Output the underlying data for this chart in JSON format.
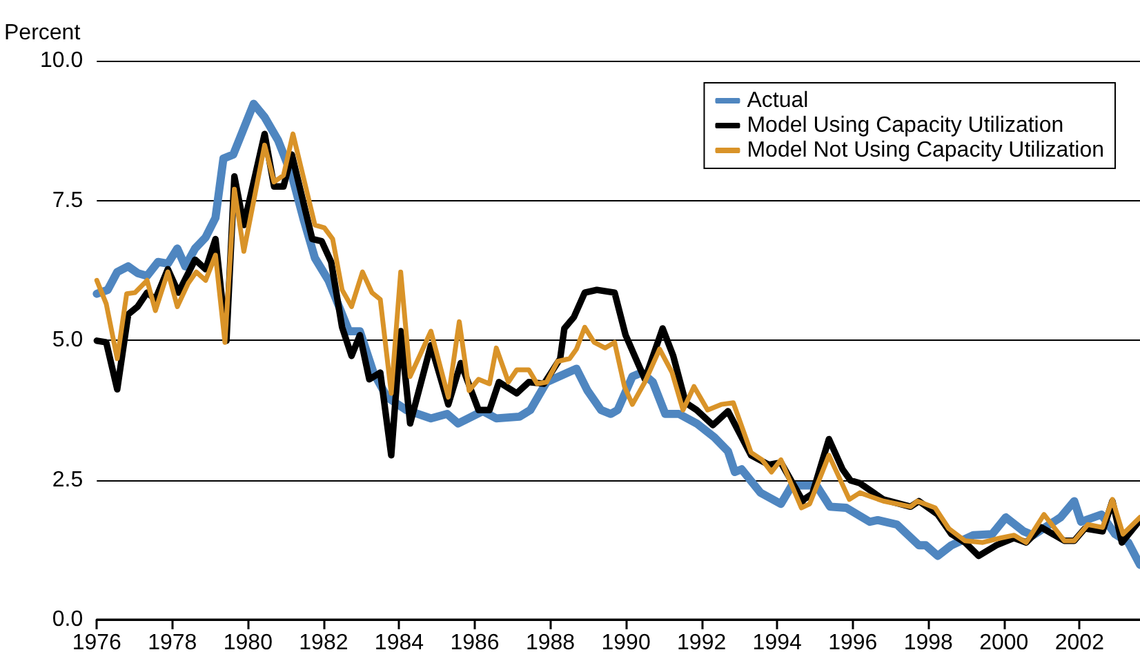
{
  "chart_data": {
    "type": "line",
    "ylabel": "Percent",
    "xlim": [
      1976,
      2003.6
    ],
    "xticks": [
      1976,
      1978,
      1980,
      1982,
      1984,
      1986,
      1988,
      1990,
      1992,
      1994,
      1996,
      1998,
      2000,
      2002
    ],
    "ylim": [
      0,
      10
    ],
    "yticks": [
      {
        "value": 0,
        "label": "0.0"
      },
      {
        "value": 2.5,
        "label": "2.5"
      },
      {
        "value": 5,
        "label": "5.0"
      },
      {
        "value": 7.5,
        "label": "7.5"
      },
      {
        "value": 10,
        "label": "10.0"
      }
    ],
    "grid": "y",
    "legend": "top right",
    "marker": "none",
    "line_style": "solid",
    "series": [
      {
        "name": "Actual",
        "color": "#4f86c0",
        "x": [
          1976.0,
          1976.29,
          1976.54,
          1976.83,
          1977.08,
          1977.33,
          1977.62,
          1977.88,
          1978.13,
          1978.34,
          1978.6,
          1978.88,
          1979.14,
          1979.35,
          1979.61,
          1980.15,
          1980.44,
          1980.8,
          1981.16,
          1981.48,
          1981.77,
          1982.13,
          1982.38,
          1982.67,
          1982.96,
          1983.32,
          1983.68,
          1984.19,
          1984.84,
          1985.27,
          1985.56,
          1986.21,
          1986.57,
          1987.18,
          1987.47,
          1987.9,
          1988.69,
          1988.98,
          1989.34,
          1989.6,
          1989.78,
          1990.17,
          1990.42,
          1990.71,
          1991.04,
          1991.4,
          1991.87,
          1992.34,
          1992.7,
          1992.88,
          1993.06,
          1993.56,
          1994.1,
          1994.39,
          1995.04,
          1995.4,
          1995.83,
          1996.45,
          1996.66,
          1997.17,
          1997.75,
          1997.93,
          1998.25,
          1998.61,
          1999.19,
          1999.69,
          2000.05,
          2000.52,
          2000.77,
          2001.5,
          2001.86,
          2002.04,
          2002.58,
          2002.94,
          2003.29,
          2003.6
        ],
        "values": [
          5.83,
          5.9,
          6.22,
          6.32,
          6.2,
          6.15,
          6.4,
          6.37,
          6.64,
          6.32,
          6.64,
          6.84,
          7.19,
          8.25,
          8.32,
          9.23,
          8.99,
          8.57,
          7.95,
          7.14,
          6.47,
          6.07,
          5.65,
          5.16,
          5.16,
          4.42,
          3.98,
          3.75,
          3.6,
          3.68,
          3.51,
          3.73,
          3.6,
          3.63,
          3.75,
          4.25,
          4.49,
          4.1,
          3.75,
          3.68,
          3.75,
          4.35,
          4.42,
          4.25,
          3.68,
          3.68,
          3.51,
          3.26,
          3.01,
          2.64,
          2.69,
          2.27,
          2.07,
          2.4,
          2.4,
          2.02,
          2.0,
          1.75,
          1.78,
          1.7,
          1.33,
          1.33,
          1.14,
          1.33,
          1.51,
          1.53,
          1.83,
          1.58,
          1.51,
          1.83,
          2.12,
          1.75,
          1.88,
          1.53,
          1.38,
          0.98
        ]
      },
      {
        "name": "Model Using Capacity Utilization",
        "color": "#000000",
        "x": [
          1976.0,
          1976.25,
          1976.54,
          1976.83,
          1977.08,
          1977.33,
          1977.55,
          1977.88,
          1978.16,
          1978.6,
          1978.88,
          1979.14,
          1979.43,
          1979.64,
          1979.89,
          1980.44,
          1980.69,
          1980.94,
          1981.16,
          1981.7,
          1981.95,
          1982.2,
          1982.49,
          1982.74,
          1982.96,
          1983.21,
          1983.5,
          1983.79,
          1984.04,
          1984.29,
          1984.84,
          1985.3,
          1985.63,
          1986.1,
          1986.39,
          1986.64,
          1987.11,
          1987.43,
          1987.83,
          1988.26,
          1988.37,
          1988.62,
          1988.91,
          1989.23,
          1989.7,
          1989.99,
          1990.5,
          1990.97,
          1991.25,
          1991.58,
          1991.87,
          1992.3,
          1992.7,
          1993.31,
          1993.78,
          1994.1,
          1994.68,
          1994.64,
          1994.93,
          1995.37,
          1995.73,
          1995.94,
          1996.19,
          1996.81,
          1997.53,
          1997.75,
          1998.25,
          1998.61,
          1998.97,
          1999.33,
          1999.8,
          2000.27,
          2000.59,
          2000.99,
          2001.6,
          2001.86,
          2002.14,
          2002.61,
          2002.87,
          2003.12,
          2003.6
        ],
        "values": [
          4.99,
          4.96,
          4.12,
          5.46,
          5.6,
          5.85,
          5.73,
          6.27,
          5.85,
          6.44,
          6.27,
          6.81,
          4.99,
          7.93,
          7.06,
          8.69,
          7.75,
          7.75,
          8.32,
          6.81,
          6.77,
          6.4,
          5.23,
          4.72,
          5.09,
          4.3,
          4.42,
          2.94,
          5.16,
          3.51,
          4.91,
          3.85,
          4.59,
          3.75,
          3.75,
          4.25,
          4.05,
          4.25,
          4.22,
          4.67,
          5.21,
          5.41,
          5.85,
          5.9,
          5.85,
          5.09,
          4.3,
          5.21,
          4.72,
          3.88,
          3.75,
          3.48,
          3.73,
          2.94,
          2.77,
          2.81,
          2.12,
          2.12,
          2.25,
          3.23,
          2.69,
          2.49,
          2.44,
          2.15,
          2.02,
          2.12,
          1.88,
          1.53,
          1.38,
          1.14,
          1.33,
          1.46,
          1.38,
          1.65,
          1.41,
          1.41,
          1.63,
          1.58,
          2.12,
          1.38,
          1.78
        ]
      },
      {
        "name": "Model Not Using Capacity Utilization",
        "color": "#d99328",
        "x": [
          1976.0,
          1976.25,
          1976.54,
          1976.79,
          1977.01,
          1977.33,
          1977.55,
          1977.88,
          1978.13,
          1978.42,
          1978.63,
          1978.88,
          1979.14,
          1979.39,
          1979.64,
          1979.89,
          1980.44,
          1980.69,
          1980.94,
          1981.19,
          1981.77,
          1982.02,
          1982.24,
          1982.49,
          1982.74,
          1983.03,
          1983.28,
          1983.5,
          1983.79,
          1984.04,
          1984.29,
          1984.84,
          1985.3,
          1985.59,
          1985.85,
          1986.1,
          1986.39,
          1986.57,
          1986.89,
          1987.11,
          1987.43,
          1987.65,
          1987.9,
          1988.19,
          1988.51,
          1988.69,
          1988.91,
          1989.16,
          1989.45,
          1989.7,
          1989.96,
          1990.17,
          1990.5,
          1990.89,
          1991.22,
          1991.51,
          1991.8,
          1992.16,
          1992.52,
          1992.84,
          1993.31,
          1993.6,
          1993.85,
          1994.1,
          1994.64,
          1994.86,
          1995.37,
          1995.91,
          1996.19,
          1996.81,
          1997.53,
          1997.71,
          1998.18,
          1998.54,
          1998.97,
          1999.44,
          1999.91,
          2000.27,
          2000.59,
          2001.06,
          2001.6,
          2001.86,
          2002.22,
          2002.61,
          2002.87,
          2003.15,
          2003.6
        ],
        "values": [
          6.07,
          5.65,
          4.67,
          5.83,
          5.85,
          6.07,
          5.53,
          6.22,
          5.6,
          6.02,
          6.22,
          6.07,
          6.52,
          4.96,
          7.7,
          6.59,
          8.49,
          7.83,
          7.95,
          8.69,
          7.06,
          7.01,
          6.81,
          5.9,
          5.6,
          6.22,
          5.85,
          5.73,
          4.05,
          6.22,
          4.35,
          5.16,
          3.98,
          5.33,
          4.1,
          4.3,
          4.22,
          4.86,
          4.25,
          4.47,
          4.47,
          4.22,
          4.25,
          4.62,
          4.67,
          4.84,
          5.23,
          4.96,
          4.86,
          4.96,
          4.17,
          3.85,
          4.25,
          4.84,
          4.42,
          3.75,
          4.17,
          3.75,
          3.85,
          3.88,
          2.99,
          2.86,
          2.64,
          2.86,
          2.0,
          2.07,
          2.94,
          2.15,
          2.27,
          2.12,
          2.02,
          2.12,
          2.0,
          1.63,
          1.41,
          1.38,
          1.46,
          1.51,
          1.38,
          1.88,
          1.41,
          1.41,
          1.7,
          1.65,
          2.15,
          1.53,
          1.83
        ]
      }
    ]
  }
}
